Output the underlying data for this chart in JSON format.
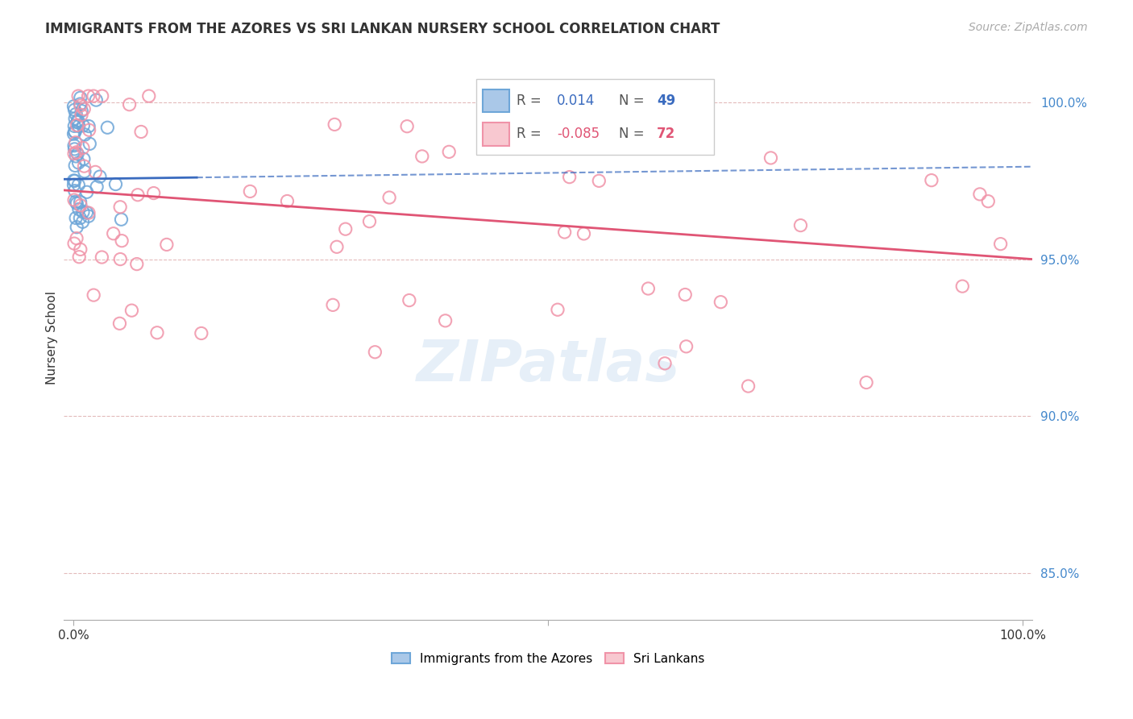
{
  "title": "IMMIGRANTS FROM THE AZORES VS SRI LANKAN NURSERY SCHOOL CORRELATION CHART",
  "source": "Source: ZipAtlas.com",
  "ylabel": "Nursery School",
  "yticks": [
    "85.0%",
    "90.0%",
    "95.0%",
    "100.0%"
  ],
  "ytick_vals": [
    0.85,
    0.9,
    0.95,
    1.0
  ],
  "legend_blue_r": "0.014",
  "legend_blue_n": "49",
  "legend_pink_r": "-0.085",
  "legend_pink_n": "72",
  "legend_label_blue": "Immigrants from the Azores",
  "legend_label_pink": "Sri Lankans",
  "watermark": "ZIPatlas",
  "blue_color": "#6ea6d8",
  "pink_color": "#f093a8",
  "blue_line_color": "#3a6bbf",
  "pink_line_color": "#e05575",
  "blue_line_start_y": 0.9755,
  "blue_line_end_y": 0.9795,
  "blue_line_cut_x": 0.13,
  "pink_line_start_y": 0.972,
  "pink_line_end_y": 0.95,
  "xlim": [
    -0.01,
    1.01
  ],
  "ylim": [
    0.835,
    1.015
  ]
}
